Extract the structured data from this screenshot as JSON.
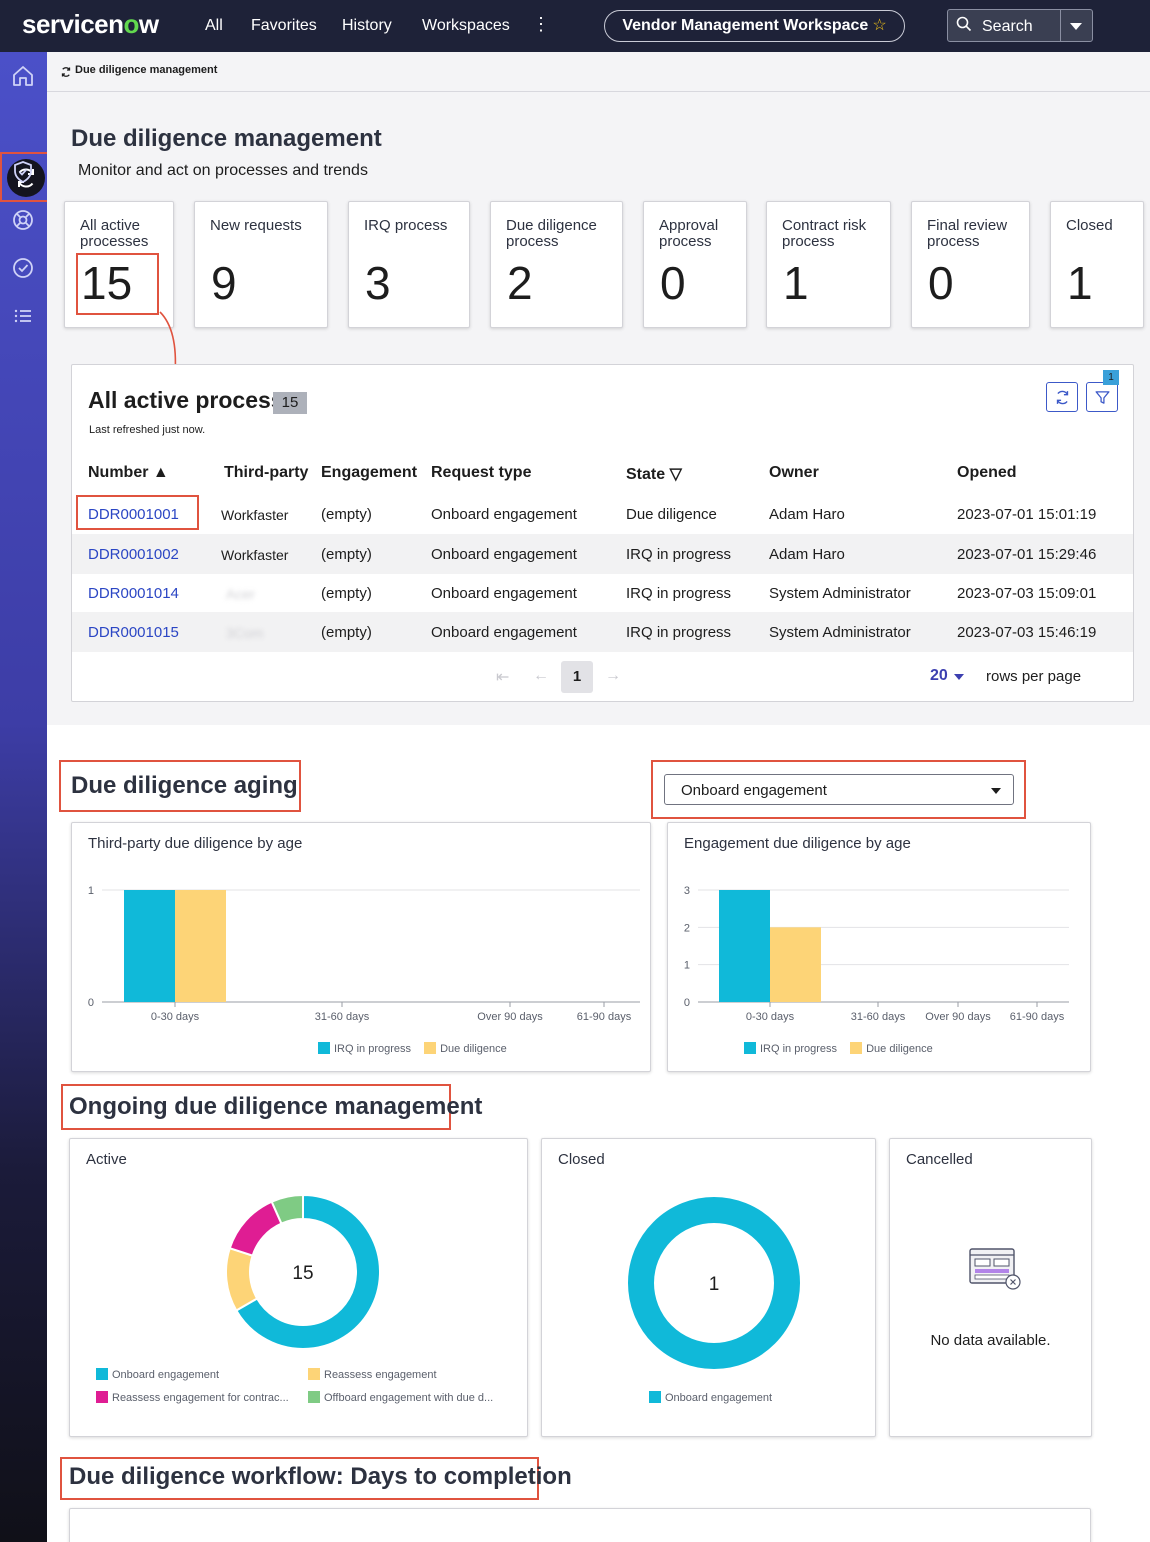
{
  "topnav": {
    "logo_prefix": "servicen",
    "logo_o": "o",
    "logo_suffix": "w",
    "items": [
      "All",
      "Favorites",
      "History",
      "Workspaces"
    ],
    "more": "⋮",
    "workspace_name": "Vendor Management Workspace",
    "workspace_star": "☆",
    "search_label": "Search"
  },
  "breadcrumb": {
    "label": "Due diligence management"
  },
  "page": {
    "title": "Due diligence management",
    "subtitle": "Monitor and act on processes and trends"
  },
  "cards": [
    {
      "label": "All active processes",
      "value": "15"
    },
    {
      "label": "New requests",
      "value": "9"
    },
    {
      "label": "IRQ process",
      "value": "3"
    },
    {
      "label": "Due diligence process",
      "value": "2"
    },
    {
      "label": "Approval process",
      "value": "0"
    },
    {
      "label": "Contract risk process",
      "value": "1"
    },
    {
      "label": "Final review process",
      "value": "0"
    },
    {
      "label": "Closed",
      "value": "1"
    }
  ],
  "list": {
    "title": "All active process",
    "count": "15",
    "refreshed": "Last refreshed just now.",
    "filter_badge": "1",
    "columns": [
      "Number ▲",
      "Third-party",
      "Engagement",
      "Request type",
      "State ▽",
      "Owner",
      "Opened"
    ],
    "rows": [
      [
        "DDR0001001",
        "Workfaster",
        "(empty)",
        "Onboard engagement",
        "Due diligence",
        "Adam Haro",
        "2023-07-01 15:01:19"
      ],
      [
        "DDR0001002",
        "Workfaster",
        "(empty)",
        "Onboard engagement",
        "IRQ in progress",
        "Adam Haro",
        "2023-07-01 15:29:46"
      ],
      [
        "DDR0001014",
        "Acer",
        "(empty)",
        "Onboard engagement",
        "IRQ in progress",
        "System Administrator",
        "2023-07-03 15:09:01"
      ],
      [
        "DDR0001015",
        "3Com",
        "(empty)",
        "Onboard engagement",
        "IRQ in progress",
        "System Administrator",
        "2023-07-03 15:46:19"
      ]
    ],
    "pagination": {
      "first": "⇤",
      "prev": "←",
      "page": "1",
      "next": "→",
      "rows_per_page": "20",
      "rows_per_page_label": "rows per page"
    }
  },
  "aging": {
    "title": "Due diligence aging",
    "dropdown_value": "Onboard engagement"
  },
  "ongoing": {
    "title": "Ongoing due diligence management"
  },
  "workflow": {
    "title": "Due diligence workflow: Days to completion"
  },
  "colors": {
    "cyan": "#10b9d9",
    "yellow": "#fdd477",
    "magenta": "#df1d93",
    "green": "#7fcb84",
    "link": "#2b46c4",
    "highlight": "#e0533f"
  },
  "chart_data": [
    {
      "type": "bar",
      "title": "Third-party due diligence by age",
      "categories": [
        "0-30 days",
        "31-60 days",
        "Over 90 days",
        "61-90 days"
      ],
      "series": [
        {
          "name": "IRQ in progress",
          "values": [
            1,
            0,
            0,
            0
          ]
        },
        {
          "name": "Due diligence",
          "values": [
            1,
            0,
            0,
            0
          ]
        }
      ],
      "ylim": [
        0,
        1
      ],
      "yticks": [
        0,
        1
      ],
      "legend": "bottom",
      "grid": true
    },
    {
      "type": "bar",
      "title": "Engagement due diligence by age",
      "categories": [
        "0-30 days",
        "31-60 days",
        "Over 90 days",
        "61-90 days"
      ],
      "series": [
        {
          "name": "IRQ in progress",
          "values": [
            3,
            0,
            0,
            0
          ]
        },
        {
          "name": "Due diligence",
          "values": [
            2,
            0,
            0,
            0
          ]
        }
      ],
      "ylim": [
        0,
        3
      ],
      "yticks": [
        0,
        1,
        2,
        3
      ],
      "legend": "bottom",
      "grid": true
    },
    {
      "type": "pie",
      "title": "Active",
      "center_label": "15",
      "slices": [
        {
          "name": "Onboard engagement",
          "value": 10
        },
        {
          "name": "Reassess engagement",
          "value": 2
        },
        {
          "name": "Reassess engagement for contrac...",
          "value": 2
        },
        {
          "name": "Offboard engagement with due d...",
          "value": 1
        }
      ],
      "legend": "bottom"
    },
    {
      "type": "pie",
      "title": "Closed",
      "center_label": "1",
      "slices": [
        {
          "name": "Onboard engagement",
          "value": 1
        }
      ],
      "legend": "bottom"
    }
  ],
  "cancelled": {
    "title": "Cancelled",
    "empty_text": "No data available."
  }
}
